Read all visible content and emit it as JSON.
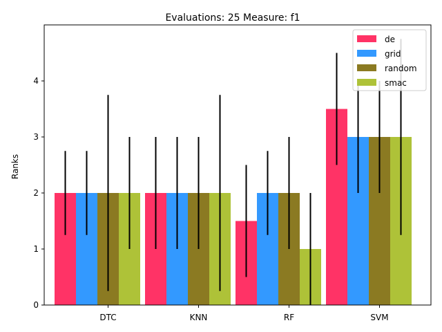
{
  "chart_data": {
    "type": "bar",
    "title": "Evaluations: 25 Measure: f1",
    "xlabel": "",
    "ylabel": "Ranks",
    "categories": [
      "DTC",
      "KNN",
      "RF",
      "SVM"
    ],
    "ylim": [
      0,
      5
    ],
    "yticks": [
      0,
      1,
      2,
      3,
      4
    ],
    "grid": false,
    "legend_position": "top-right",
    "series": [
      {
        "name": "de",
        "color": "#ff3366",
        "values": [
          2,
          2,
          1.5,
          3.5
        ],
        "err_low": [
          1.25,
          1.0,
          0.5,
          2.5
        ],
        "err_high": [
          2.75,
          3.0,
          2.5,
          4.5
        ]
      },
      {
        "name": "grid",
        "color": "#3399ff",
        "values": [
          2,
          2,
          2,
          3
        ],
        "err_low": [
          1.25,
          1.0,
          1.25,
          2.0
        ],
        "err_high": [
          2.75,
          3.0,
          2.75,
          4.0
        ]
      },
      {
        "name": "random",
        "color": "#8b7a22",
        "values": [
          2,
          2,
          2,
          3
        ],
        "err_low": [
          0.25,
          1.0,
          1.0,
          2.0
        ],
        "err_high": [
          3.75,
          3.0,
          3.0,
          4.0
        ]
      },
      {
        "name": "smac",
        "color": "#aec238",
        "values": [
          2,
          2,
          1,
          3
        ],
        "err_low": [
          1.0,
          0.25,
          0.0,
          1.25
        ],
        "err_high": [
          3.0,
          3.75,
          2.0,
          4.75
        ]
      }
    ]
  }
}
